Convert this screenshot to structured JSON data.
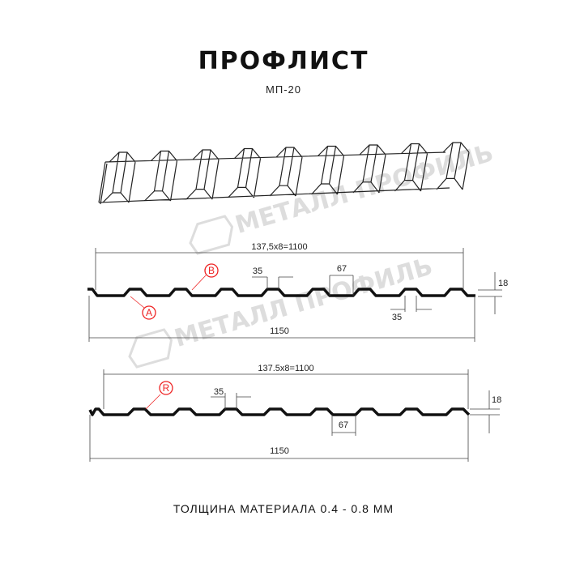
{
  "title": "ПРОФЛИСТ",
  "subtitle": "МП-20",
  "footer": "ТОЛЩИНА МАТЕРИАЛА 0.4 - 0.8 ММ",
  "watermark": "МЕТАЛЛ ПРОФИЛЬ",
  "profile_1": {
    "pitch_label": "137,5x8=1100",
    "width_label": "1150",
    "top_flat": "35",
    "bottom_flat_label": "35",
    "gap": "67",
    "height": "18",
    "marker_a": "A",
    "marker_b": "B"
  },
  "profile_2": {
    "pitch_label": "137.5x8=1100",
    "width_label": "1150",
    "top_flat": "35",
    "gap": "67",
    "height": "18",
    "marker_r": "R"
  },
  "colors": {
    "profile": "#111111",
    "marker": "#e02020",
    "dimension": "#333333",
    "watermark": "#dddddd"
  }
}
